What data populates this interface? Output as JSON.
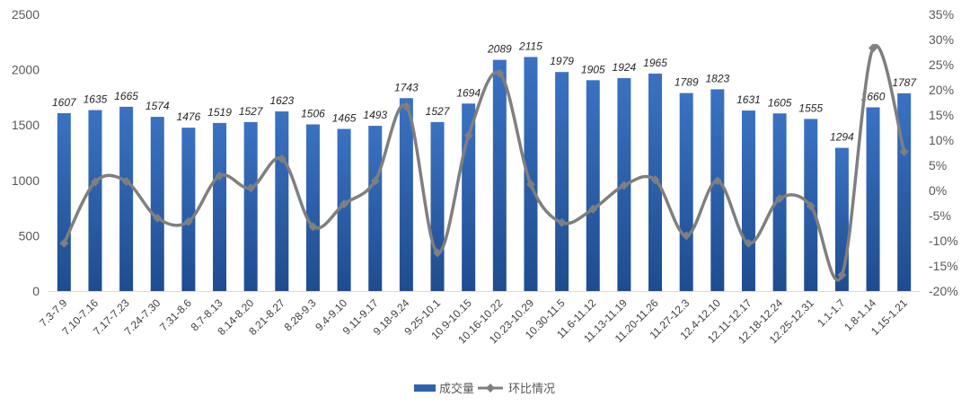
{
  "chart_data": {
    "type": "bar",
    "categories": [
      "7.3-7.9",
      "7.10-7.16",
      "7.17-7.23",
      "7.24-7.30",
      "7.31-8.6",
      "8.7-8.13",
      "8.14-8.20",
      "8.21-8.27",
      "8.28-9.3",
      "9.4-9.10",
      "9.11-9.17",
      "9.18-9.24",
      "9.25-10.1",
      "10.9-10.15",
      "10.16-10.22",
      "10.23-10.29",
      "10.30-11.5",
      "11.6-11.12",
      "11.13-11.19",
      "11.20-11.26",
      "11.27-12.3",
      "12.4-12.10",
      "12.11-12.17",
      "12.18-12.24",
      "12.25-12.31",
      "1.1-1.7",
      "1.8-1.14",
      "1.15-1.21"
    ],
    "series": [
      {
        "name": "成交量",
        "type": "bar",
        "axis": "left",
        "values": [
          1607,
          1635,
          1665,
          1574,
          1476,
          1519,
          1527,
          1623,
          1506,
          1465,
          1493,
          1743,
          1527,
          1694,
          2089,
          2115,
          1979,
          1905,
          1924,
          1965,
          1789,
          1823,
          1631,
          1605,
          1555,
          1294,
          1660,
          1787
        ]
      },
      {
        "name": "环比情况",
        "type": "line",
        "axis": "right",
        "values": [
          -10.5,
          1.7,
          1.8,
          -5.5,
          -6.2,
          2.9,
          0.5,
          6.3,
          -7.2,
          -2.7,
          1.9,
          16.7,
          -12.4,
          10.9,
          23.3,
          1.2,
          -6.4,
          -3.7,
          1.0,
          2.1,
          -9.0,
          1.9,
          -10.5,
          -1.6,
          -3.1,
          -16.8,
          28.3,
          7.7
        ]
      }
    ],
    "left_axis": {
      "ylim": [
        0,
        2500
      ],
      "ticks": [
        "0",
        "500",
        "1000",
        "1500",
        "2000",
        "2500"
      ]
    },
    "right_axis": {
      "ylim": [
        -20,
        35
      ],
      "ticks": [
        "-20%",
        "-15%",
        "-10%",
        "-5%",
        "0%",
        "5%",
        "10%",
        "15%",
        "20%",
        "25%",
        "30%",
        "35%"
      ]
    },
    "legend_position": "bottom",
    "grid": false,
    "colors": {
      "bar": "#2E62AE",
      "line": "#7F7F7F"
    }
  }
}
